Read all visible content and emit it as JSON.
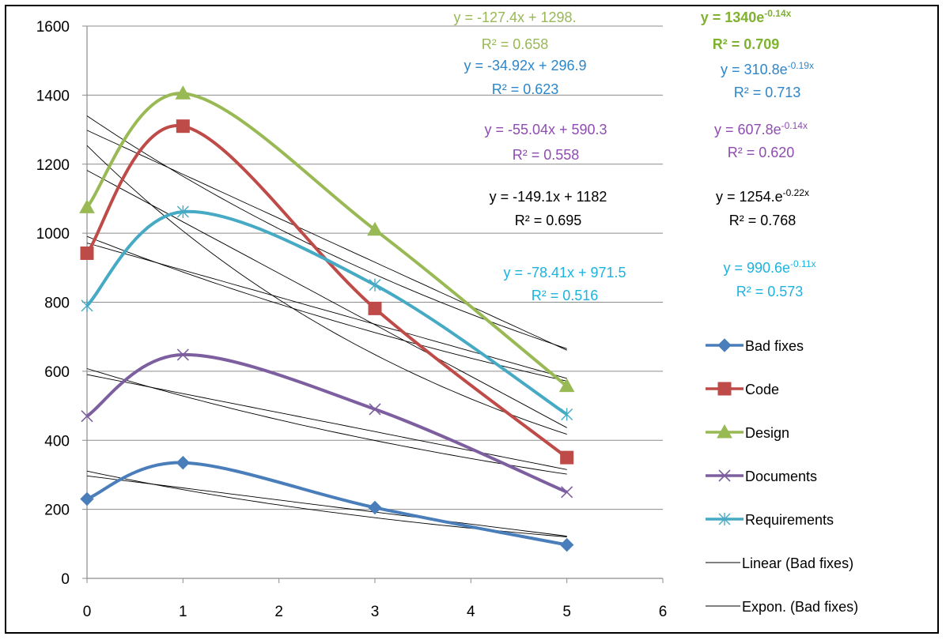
{
  "chart_data": {
    "type": "line",
    "title": "",
    "xlabel": "",
    "ylabel": "",
    "xlim": [
      0,
      6
    ],
    "ylim": [
      0,
      1600
    ],
    "x_ticks": [
      "0",
      "1",
      "2",
      "3",
      "4",
      "5",
      "6"
    ],
    "y_ticks": [
      "0",
      "200",
      "400",
      "600",
      "800",
      "1000",
      "1200",
      "1400",
      "1600"
    ],
    "grid": "horizontal",
    "legend_position": "right",
    "x": [
      0,
      1,
      3,
      5
    ],
    "series": [
      {
        "name": "Bad fixes",
        "values": [
          230,
          335,
          205,
          97
        ],
        "color": "#4A7EBB",
        "marker": "diamond"
      },
      {
        "name": "Code",
        "values": [
          942,
          1310,
          782,
          350
        ],
        "color": "#BE4B48",
        "marker": "square"
      },
      {
        "name": "Design",
        "values": [
          1075,
          1405,
          1010,
          557
        ],
        "color": "#98B954",
        "marker": "triangle"
      },
      {
        "name": "Documents",
        "values": [
          470,
          648,
          490,
          250
        ],
        "color": "#7D5FA0",
        "marker": "x"
      },
      {
        "name": "Requirements",
        "values": [
          790,
          1062,
          850,
          475
        ],
        "color": "#46AAC5",
        "marker": "star"
      }
    ],
    "trendline_legend": [
      "Linear (Bad fixes)",
      "Expon. (Bad fixes)"
    ],
    "trendlines": [
      {
        "kind": "linear",
        "slope": -127.4,
        "intercept": 1298
      },
      {
        "kind": "exp",
        "a": 1340,
        "b": -0.14
      },
      {
        "kind": "linear",
        "slope": -34.92,
        "intercept": 296.9
      },
      {
        "kind": "exp",
        "a": 310.8,
        "b": -0.19
      },
      {
        "kind": "linear",
        "slope": -55.04,
        "intercept": 590.3
      },
      {
        "kind": "exp",
        "a": 607.8,
        "b": -0.14
      },
      {
        "kind": "linear",
        "slope": -149.1,
        "intercept": 1182
      },
      {
        "kind": "exp",
        "a": 1254,
        "b": -0.22
      },
      {
        "kind": "linear",
        "slope": -78.41,
        "intercept": 971.5
      },
      {
        "kind": "exp",
        "a": 990.6,
        "b": -0.11
      }
    ],
    "annotations": [
      {
        "line1": "y = -127.4x + 1298.",
        "line2": "R² = 0.658",
        "color": "#98B954",
        "bold": false
      },
      {
        "line1_base": "y = 1340e",
        "line1_exp": "-0.14x",
        "line2": "R² = 0.709",
        "color": "#7FB22E",
        "bold": true
      },
      {
        "line1": "y = -34.92x + 296.9",
        "line2": "R² = 0.623",
        "color": "#2E86C8",
        "bold": false
      },
      {
        "line1_base": "y = 310.8e",
        "line1_exp": "-0.19x",
        "line2": "R² = 0.713",
        "color": "#2E86C8",
        "bold": false
      },
      {
        "line1": "y = -55.04x + 590.3",
        "line2": "R² = 0.558",
        "color": "#8E4DB0",
        "bold": false
      },
      {
        "line1_base": "y = 607.8e",
        "line1_exp": "-0.14x",
        "line2": "R² = 0.620",
        "color": "#8E4DB0",
        "bold": false
      },
      {
        "line1": "y = -149.1x + 1182",
        "line2": "R² = 0.695",
        "color": "#000000",
        "bold": false
      },
      {
        "line1_base": "y = 1254.e",
        "line1_exp": "-0.22x",
        "line2": "R² = 0.768",
        "color": "#000000",
        "bold": false
      },
      {
        "line1": "y = -78.41x + 971.5",
        "line2": "R² = 0.516",
        "color": "#1CB3E0",
        "bold": false
      },
      {
        "line1_base": "y = 990.6e",
        "line1_exp": "-0.11x",
        "line2": "R² = 0.573",
        "color": "#1CB3E0",
        "bold": false
      }
    ]
  }
}
